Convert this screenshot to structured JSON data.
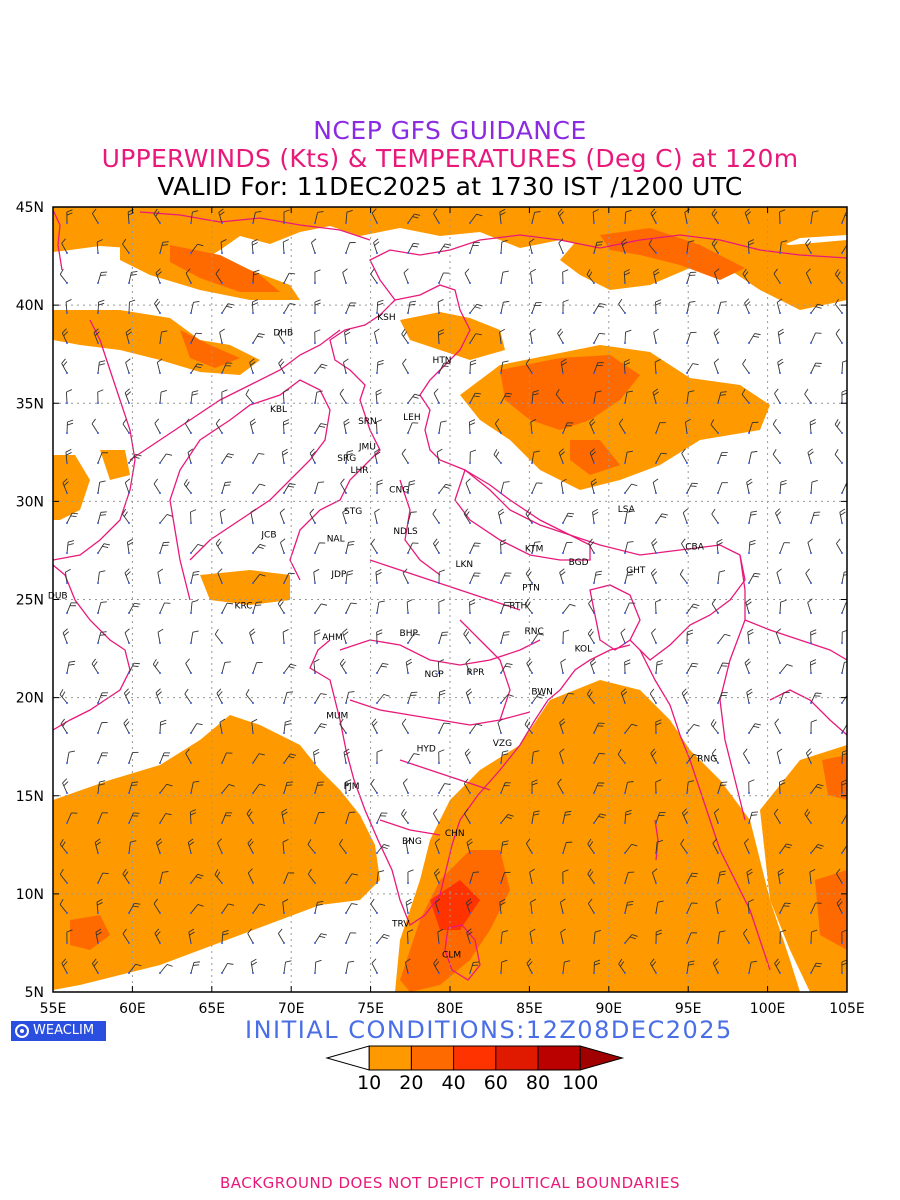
{
  "header": {
    "title": "NCEP GFS GUIDANCE",
    "subtitle": "UPPERWINDS (Kts) & TEMPERATURES (Deg C) at 120m",
    "valid": "VALID For: 11DEC2025 at 1730 IST /1200 UTC"
  },
  "map": {
    "lon_labels": [
      "55E",
      "60E",
      "65E",
      "70E",
      "75E",
      "80E",
      "85E",
      "90E",
      "95E",
      "100E",
      "105E"
    ],
    "lat_labels": [
      "45N",
      "40N",
      "35N",
      "30N",
      "25N",
      "20N",
      "15N",
      "10N",
      "5N"
    ],
    "lon_range": [
      55,
      105
    ],
    "lat_range": [
      5,
      45
    ],
    "grid": "dotted",
    "stations": [
      {
        "name": "KSH",
        "lon": 76.0,
        "lat": 39.4
      },
      {
        "name": "DHB",
        "lon": 69.5,
        "lat": 38.6
      },
      {
        "name": "HTN",
        "lon": 79.5,
        "lat": 37.2
      },
      {
        "name": "KBL",
        "lon": 69.2,
        "lat": 34.7
      },
      {
        "name": "SRN",
        "lon": 74.8,
        "lat": 34.1
      },
      {
        "name": "LEH",
        "lon": 77.6,
        "lat": 34.3
      },
      {
        "name": "JMU",
        "lon": 74.8,
        "lat": 32.8
      },
      {
        "name": "SRG",
        "lon": 73.5,
        "lat": 32.2
      },
      {
        "name": "LHR",
        "lon": 74.3,
        "lat": 31.6
      },
      {
        "name": "CNG",
        "lon": 76.8,
        "lat": 30.6
      },
      {
        "name": "STG",
        "lon": 73.9,
        "lat": 29.5
      },
      {
        "name": "LSA",
        "lon": 91.1,
        "lat": 29.6
      },
      {
        "name": "JCB",
        "lon": 68.6,
        "lat": 28.3
      },
      {
        "name": "NAL",
        "lon": 72.8,
        "lat": 28.1
      },
      {
        "name": "NDLS",
        "lon": 77.2,
        "lat": 28.5
      },
      {
        "name": "KTM",
        "lon": 85.3,
        "lat": 27.6
      },
      {
        "name": "CBA",
        "lon": 95.4,
        "lat": 27.7
      },
      {
        "name": "BGD",
        "lon": 88.1,
        "lat": 26.9
      },
      {
        "name": "GHT",
        "lon": 91.7,
        "lat": 26.5
      },
      {
        "name": "JDP",
        "lon": 73.0,
        "lat": 26.3
      },
      {
        "name": "LKN",
        "lon": 80.9,
        "lat": 26.8
      },
      {
        "name": "PTN",
        "lon": 85.1,
        "lat": 25.6
      },
      {
        "name": "DUB",
        "lon": 55.3,
        "lat": 25.2
      },
      {
        "name": "RTH",
        "lon": 84.3,
        "lat": 24.7
      },
      {
        "name": "KRC",
        "lon": 67.0,
        "lat": 24.7
      },
      {
        "name": "BHP",
        "lon": 77.4,
        "lat": 23.3
      },
      {
        "name": "AHM",
        "lon": 72.6,
        "lat": 23.1
      },
      {
        "name": "RNC",
        "lon": 85.3,
        "lat": 23.4
      },
      {
        "name": "KOL",
        "lon": 88.4,
        "lat": 22.5
      },
      {
        "name": "NGP",
        "lon": 79.0,
        "lat": 21.2
      },
      {
        "name": "RPR",
        "lon": 81.6,
        "lat": 21.3
      },
      {
        "name": "BWN",
        "lon": 85.8,
        "lat": 20.3
      },
      {
        "name": "MUM",
        "lon": 72.9,
        "lat": 19.1
      },
      {
        "name": "HYD",
        "lon": 78.5,
        "lat": 17.4
      },
      {
        "name": "VZG",
        "lon": 83.3,
        "lat": 17.7
      },
      {
        "name": "RNG",
        "lon": 96.2,
        "lat": 16.9
      },
      {
        "name": "PJM",
        "lon": 73.8,
        "lat": 15.5
      },
      {
        "name": "CHN",
        "lon": 80.3,
        "lat": 13.1
      },
      {
        "name": "BNG",
        "lon": 77.6,
        "lat": 12.7
      },
      {
        "name": "TRV",
        "lon": 76.9,
        "lat": 8.5
      },
      {
        "name": "CLM",
        "lon": 80.1,
        "lat": 6.9
      }
    ]
  },
  "legend": {
    "labels": [
      "10",
      "20",
      "40",
      "60",
      "80",
      "100"
    ],
    "colors": [
      "#ffffff",
      "#ff9900",
      "#ff6a00",
      "#ff3300",
      "#e01a00",
      "#bb0000",
      "#a00000"
    ]
  },
  "credit": "WEACLIM",
  "initial_conditions": "INITIAL CONDITIONS:12Z08DEC2025",
  "footer": "BACKGROUND DOES NOT DEPICT POLITICAL BOUNDARIES"
}
